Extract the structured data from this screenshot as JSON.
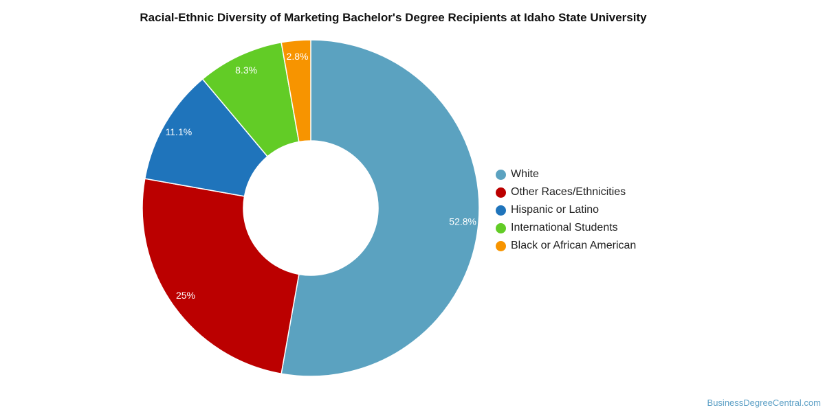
{
  "chart_data": {
    "type": "pie",
    "style": "donut",
    "title": "Racial-Ethnic Diversity of Marketing Bachelor's Degree Recipients at Idaho State University",
    "legend_position": "right",
    "slices": [
      {
        "name": "White",
        "value": 52.8,
        "label": "52.8%",
        "color": "#5ba2c0"
      },
      {
        "name": "Other Races/Ethnicities",
        "value": 25,
        "label": "25%",
        "color": "#bb0000"
      },
      {
        "name": "Hispanic or Latino",
        "value": 11.1,
        "label": "11.1%",
        "color": "#1f74bb"
      },
      {
        "name": "International Students",
        "value": 8.3,
        "label": "8.3%",
        "color": "#62cc26"
      },
      {
        "name": "Black or African American",
        "value": 2.8,
        "label": "2.8%",
        "color": "#f79400"
      }
    ]
  },
  "watermark": "BusinessDegreeCentral.com"
}
